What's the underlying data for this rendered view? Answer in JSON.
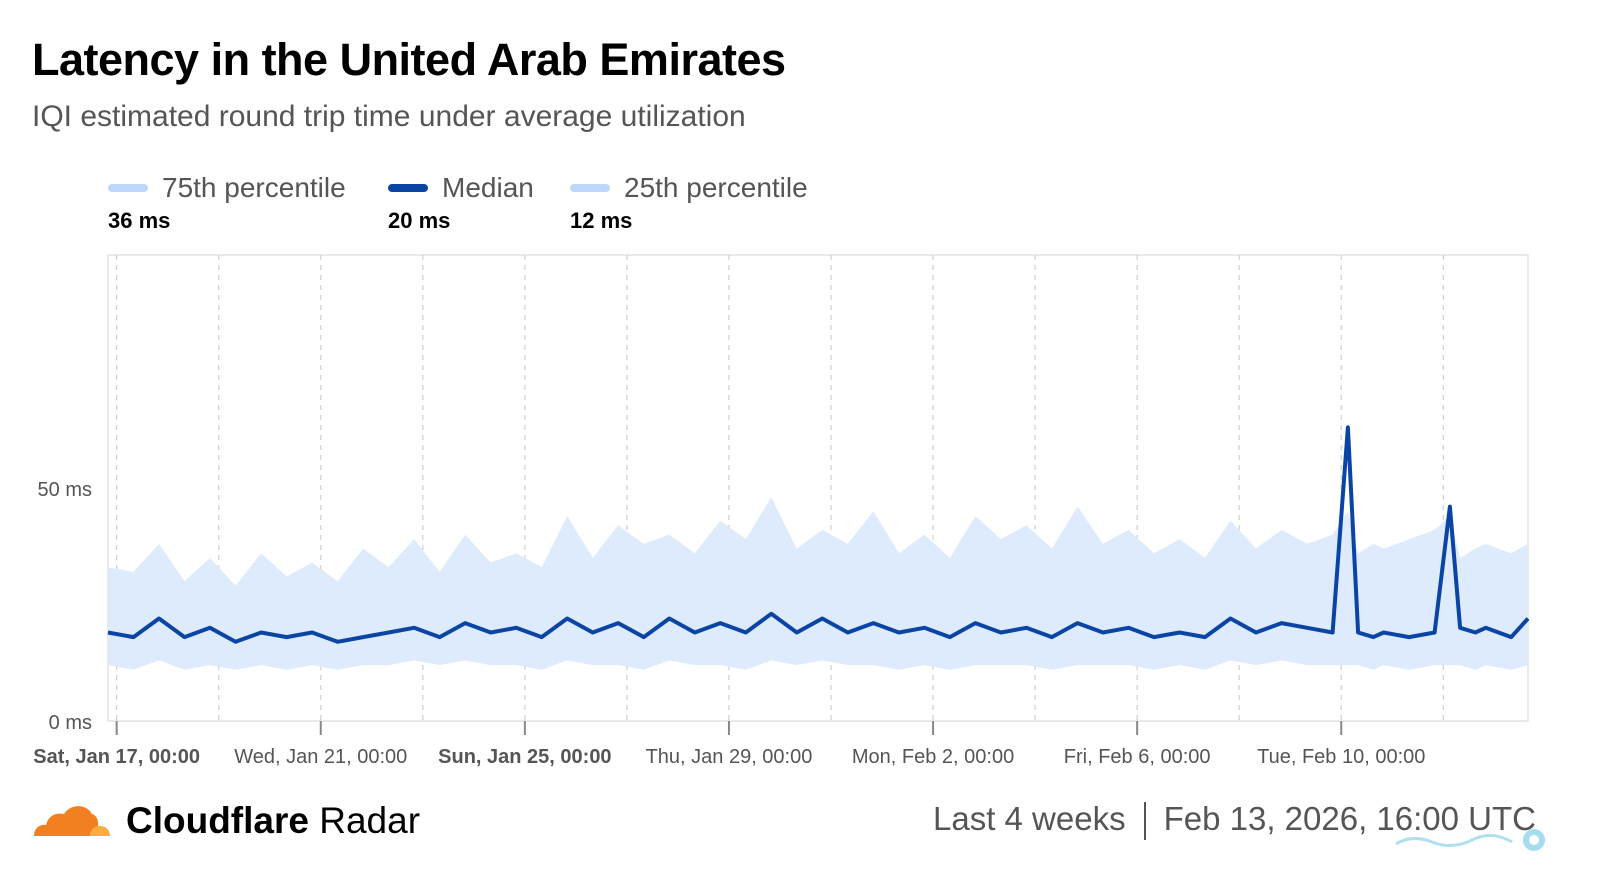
{
  "header": {
    "title": "Latency in the United Arab Emirates",
    "subtitle": "IQI estimated round trip time under average utilization"
  },
  "legend": [
    {
      "label": "75th percentile",
      "value": "36 ms",
      "color": "#bcd8fb"
    },
    {
      "label": "Median",
      "value": "20 ms",
      "color": "#0a45a5"
    },
    {
      "label": "25th percentile",
      "value": "12 ms",
      "color": "#bcd8fb"
    }
  ],
  "footer": {
    "brand_bold": "Cloudflare",
    "brand_light": "Radar",
    "range": "Last 4 weeks",
    "timestamp": "Feb 13, 2026, 16:00 UTC"
  },
  "colors": {
    "band": "#deebfd",
    "median": "#0a45a5",
    "logo_orange": "#f38020",
    "logo_light": "#faae40"
  },
  "chart_data": {
    "type": "area",
    "ylim": [
      0,
      100
    ],
    "y_ticks": [
      {
        "value": 0,
        "label": "0 ms"
      },
      {
        "value": 50,
        "label": "50 ms"
      }
    ],
    "x_range": [
      "2026-01-16T20:00",
      "2026-02-13T16:00"
    ],
    "x_ticks": [
      {
        "label": "Sat, Jan 17, 00:00",
        "day": 0.17,
        "bold": true
      },
      {
        "label": "Wed, Jan 21, 00:00",
        "day": 4.17,
        "bold": false
      },
      {
        "label": "Sun, Jan 25, 00:00",
        "day": 8.17,
        "bold": true
      },
      {
        "label": "Thu, Jan 29, 00:00",
        "day": 12.17,
        "bold": false
      },
      {
        "label": "Mon, Feb 2, 00:00",
        "day": 16.17,
        "bold": false
      },
      {
        "label": "Fri, Feb 6, 00:00",
        "day": 20.17,
        "bold": false
      },
      {
        "label": "Tue, Feb 10, 00:00",
        "day": 24.17,
        "bold": false
      }
    ],
    "minor_gridlines_days": [
      2.17,
      6.17,
      10.17,
      14.17,
      18.17,
      22.17,
      26.17
    ],
    "x_days": [
      0.0,
      0.5,
      1.0,
      1.5,
      2.0,
      2.5,
      3.0,
      3.5,
      4.0,
      4.5,
      5.0,
      5.5,
      6.0,
      6.5,
      7.0,
      7.5,
      8.0,
      8.5,
      9.0,
      9.5,
      10.0,
      10.5,
      11.0,
      11.5,
      12.0,
      12.5,
      13.0,
      13.5,
      14.0,
      14.5,
      15.0,
      15.5,
      16.0,
      16.5,
      17.0,
      17.5,
      18.0,
      18.5,
      19.0,
      19.5,
      20.0,
      20.5,
      21.0,
      21.5,
      22.0,
      22.5,
      23.0,
      23.5,
      24.0,
      24.3,
      24.5,
      24.8,
      25.0,
      25.5,
      26.0,
      26.3,
      26.5,
      26.8,
      27.0,
      27.5,
      27.83
    ],
    "series": [
      {
        "name": "75th percentile",
        "values": [
          33,
          32,
          38,
          30,
          35,
          29,
          36,
          31,
          34,
          30,
          37,
          33,
          39,
          32,
          40,
          34,
          36,
          33,
          44,
          35,
          42,
          38,
          40,
          36,
          43,
          39,
          48,
          37,
          41,
          38,
          45,
          36,
          40,
          35,
          44,
          39,
          42,
          37,
          46,
          38,
          41,
          36,
          39,
          35,
          43,
          37,
          41,
          38,
          40,
          45,
          36,
          38,
          37,
          39,
          41,
          44,
          35,
          37,
          38,
          36,
          38
        ]
      },
      {
        "name": "Median",
        "values": [
          19,
          18,
          22,
          18,
          20,
          17,
          19,
          18,
          19,
          17,
          18,
          19,
          20,
          18,
          21,
          19,
          20,
          18,
          22,
          19,
          21,
          18,
          22,
          19,
          21,
          19,
          23,
          19,
          22,
          19,
          21,
          19,
          20,
          18,
          21,
          19,
          20,
          18,
          21,
          19,
          20,
          18,
          19,
          18,
          22,
          19,
          21,
          20,
          19,
          63,
          19,
          18,
          19,
          18,
          19,
          46,
          20,
          19,
          20,
          18,
          22
        ]
      },
      {
        "name": "25th percentile",
        "values": [
          12,
          11,
          13,
          11,
          12,
          11,
          12,
          11,
          12,
          11,
          12,
          12,
          13,
          12,
          13,
          12,
          12,
          11,
          13,
          12,
          12,
          11,
          13,
          12,
          12,
          11,
          13,
          12,
          13,
          12,
          12,
          11,
          12,
          11,
          12,
          12,
          12,
          11,
          12,
          12,
          12,
          11,
          12,
          11,
          13,
          12,
          13,
          12,
          12,
          12,
          12,
          11,
          12,
          11,
          12,
          12,
          12,
          11,
          12,
          11,
          12
        ]
      }
    ]
  }
}
